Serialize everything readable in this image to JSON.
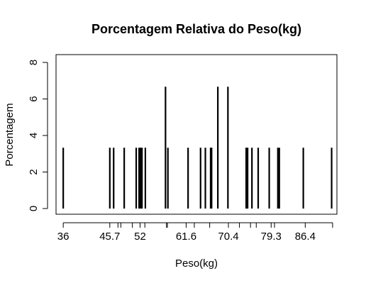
{
  "chart_data": {
    "type": "bar",
    "title": "Porcentagem Relativa do Peso(kg)",
    "xlabel": "Peso(kg)",
    "ylabel": "Porcentagem",
    "xlim": [
      34.5,
      93
    ],
    "ylim": [
      0,
      8
    ],
    "yticks": [
      0,
      2,
      4,
      6,
      8
    ],
    "xtick_labels": [
      "36",
      "45.7",
      "52",
      "61.6",
      "70.4",
      "79.3",
      "86.4"
    ],
    "xtick_label_values": [
      36,
      45.7,
      52,
      61.6,
      70.4,
      79.3,
      86.4
    ],
    "xtick_marks": [
      36,
      45.7,
      47.4,
      48,
      50.4,
      52,
      53,
      57.5,
      57.7,
      61.6,
      63.3,
      66.5,
      70.4,
      72.7,
      75,
      76.2,
      79.3,
      80,
      86.4,
      92.1
    ],
    "grid": false,
    "bars": [
      {
        "x": 36,
        "y": 3.33
      },
      {
        "x": 45.7,
        "y": 3.33
      },
      {
        "x": 46.5,
        "y": 3.33
      },
      {
        "x": 48.7,
        "y": 3.33
      },
      {
        "x": 51.2,
        "y": 3.33
      },
      {
        "x": 51.8,
        "y": 3.33
      },
      {
        "x": 52.1,
        "y": 3.33
      },
      {
        "x": 52.4,
        "y": 3.33
      },
      {
        "x": 53.1,
        "y": 3.33
      },
      {
        "x": 57.3,
        "y": 6.67
      },
      {
        "x": 57.8,
        "y": 3.33
      },
      {
        "x": 62.0,
        "y": 3.33
      },
      {
        "x": 64.6,
        "y": 3.33
      },
      {
        "x": 65.6,
        "y": 3.33
      },
      {
        "x": 66.7,
        "y": 3.33
      },
      {
        "x": 66.9,
        "y": 3.33
      },
      {
        "x": 68.2,
        "y": 6.67
      },
      {
        "x": 70.3,
        "y": 6.67
      },
      {
        "x": 74.1,
        "y": 3.33
      },
      {
        "x": 74.4,
        "y": 3.33
      },
      {
        "x": 75.3,
        "y": 3.33
      },
      {
        "x": 76.6,
        "y": 3.33
      },
      {
        "x": 78.9,
        "y": 3.33
      },
      {
        "x": 80.7,
        "y": 3.33
      },
      {
        "x": 81.0,
        "y": 3.33
      },
      {
        "x": 86.0,
        "y": 3.33
      },
      {
        "x": 91.9,
        "y": 3.33
      }
    ]
  }
}
